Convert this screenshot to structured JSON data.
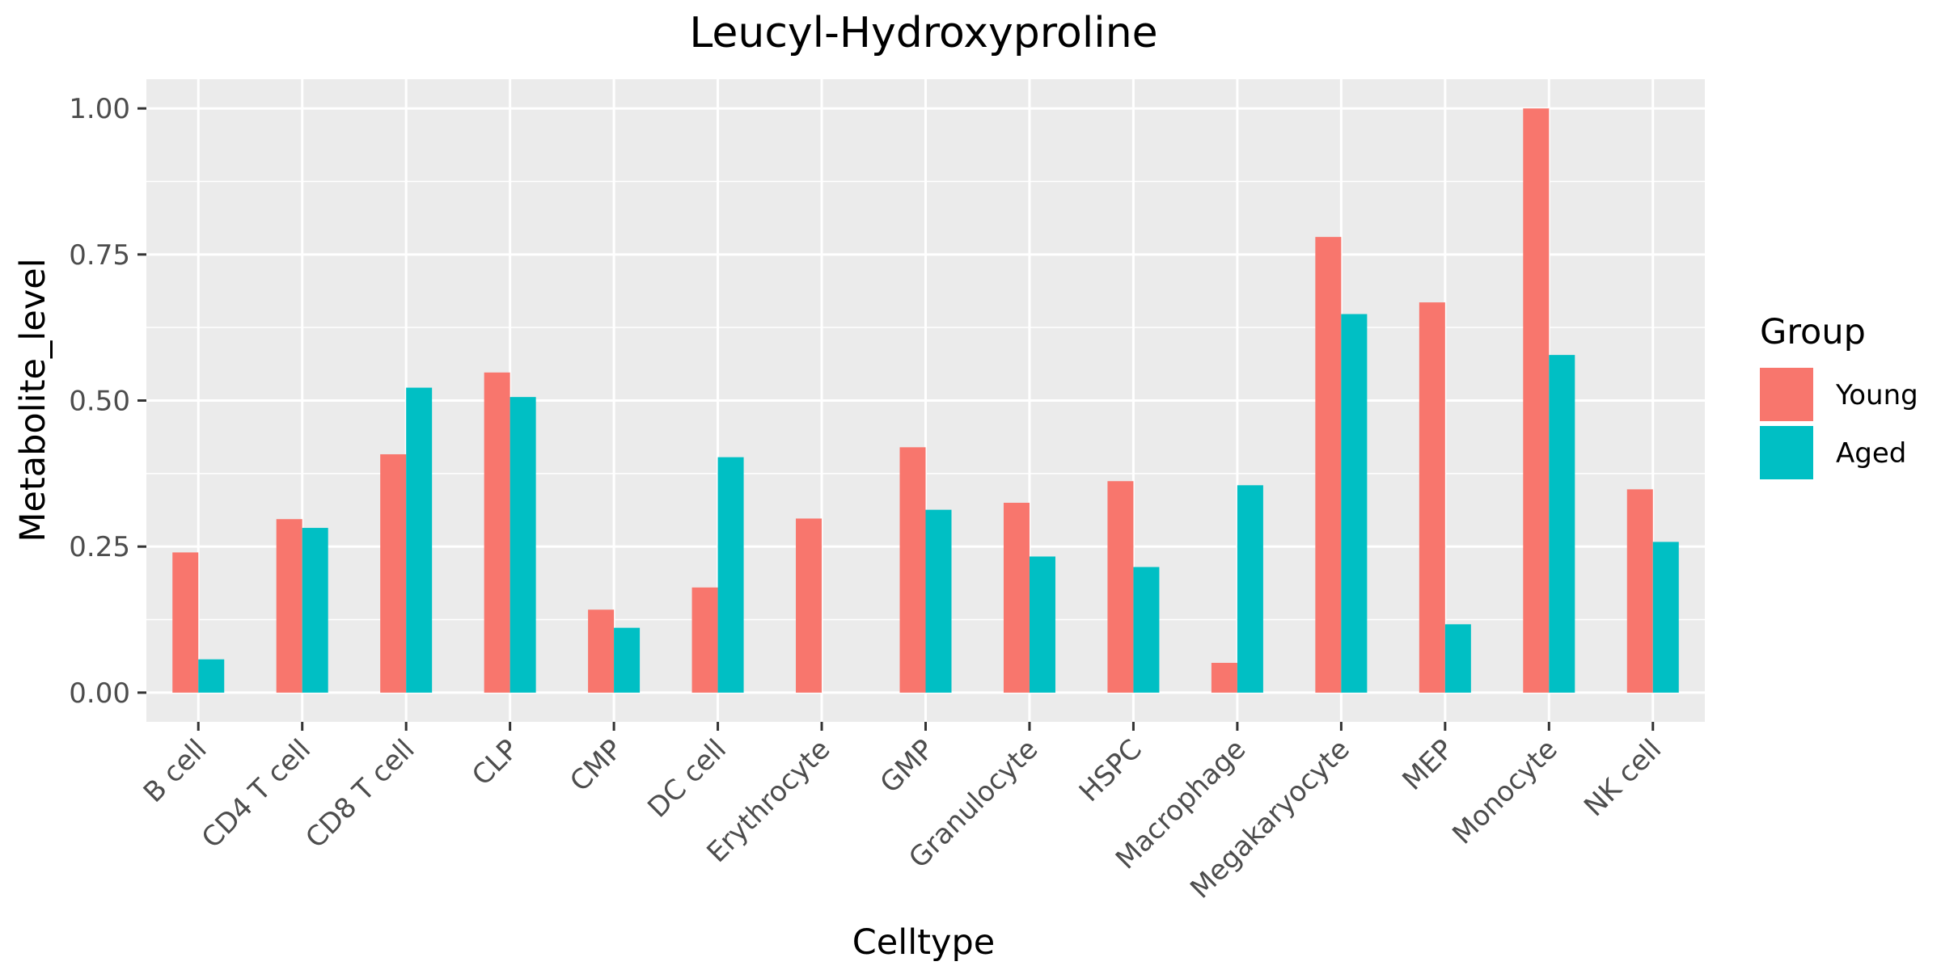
{
  "chart_data": {
    "type": "bar",
    "title": "Leucyl-Hydroxyproline",
    "xlabel": "Celltype",
    "ylabel": "Metabolite_level",
    "categories": [
      "B cell",
      "CD4 T cell",
      "CD8 T cell",
      "CLP",
      "CMP",
      "DC cell",
      "Erythrocyte",
      "GMP",
      "Granulocyte",
      "HSPC",
      "Macrophage",
      "Megakaryocyte",
      "MEP",
      "Monocyte",
      "NK cell"
    ],
    "series": [
      {
        "name": "Young",
        "color": "#F8766D",
        "values": [
          0.24,
          0.297,
          0.408,
          0.548,
          0.142,
          0.18,
          0.298,
          0.42,
          0.325,
          0.362,
          0.051,
          0.78,
          0.668,
          1.0,
          0.348
        ]
      },
      {
        "name": "Aged",
        "color": "#00BFC4",
        "values": [
          0.057,
          0.282,
          0.522,
          0.506,
          0.111,
          0.403,
          0,
          0.313,
          0.233,
          0.215,
          0.355,
          0.648,
          0.117,
          0.578,
          0.258
        ]
      }
    ],
    "yticks": [
      0,
      0.25,
      0.5,
      0.75,
      1.0
    ],
    "ytick_labels": [
      "0.00",
      "0.25",
      "0.50",
      "0.75",
      "1.00"
    ],
    "ylim": [
      -0.05,
      1.05
    ],
    "grid": true,
    "legend": {
      "title": "Group",
      "position": "right"
    }
  }
}
